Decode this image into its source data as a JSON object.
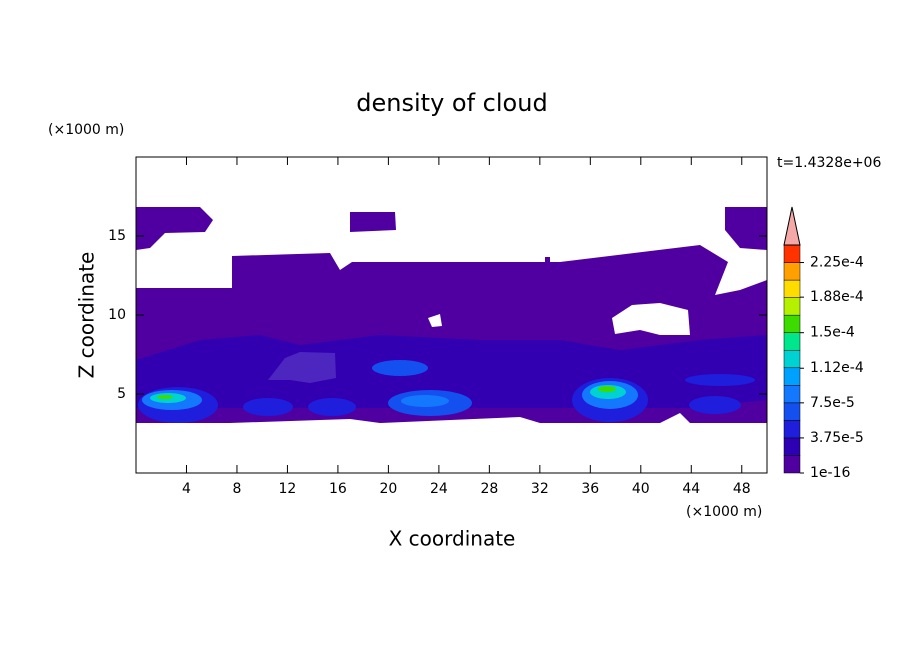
{
  "chart_data": {
    "type": "contour",
    "title": "density of cloud",
    "xlabel": "X coordinate",
    "ylabel": "Z coordinate",
    "xunit": "(×1000 m)",
    "yunit": "(×1000 m)",
    "annotation": "t=1.4328e+06",
    "xlim": [
      0,
      50
    ],
    "ylim": [
      0,
      20
    ],
    "xticks": [
      4,
      8,
      12,
      16,
      20,
      24,
      28,
      32,
      36,
      40,
      44,
      48
    ],
    "yticks": [
      5,
      10,
      15
    ],
    "colorbar": {
      "levels": [
        1e-16,
        1.875e-05,
        3.75e-05,
        5.625e-05,
        7.5e-05,
        9.375e-05,
        0.0001125,
        0.00013125,
        0.00015,
        0.00016875,
        0.0001875,
        0.00020625,
        0.000225,
        0.00024375
      ],
      "colors": [
        "#5000a0",
        "#2d00b4",
        "#1e1edc",
        "#1450f0",
        "#1478ff",
        "#00a0ff",
        "#00d2d2",
        "#00e68c",
        "#3cdc00",
        "#b4f000",
        "#ffdc00",
        "#ffa000",
        "#ff3200"
      ],
      "extend_color": "#f4a8a8",
      "ticks": [
        {
          "value": 1e-16,
          "label": "1e-16"
        },
        {
          "value": 3.75e-05,
          "label": "3.75e-5"
        },
        {
          "value": 7.5e-05,
          "label": "7.5e-5"
        },
        {
          "value": 0.000112,
          "label": "1.12e-4"
        },
        {
          "value": 0.00015,
          "label": "1.5e-4"
        },
        {
          "value": 0.000188,
          "label": "1.88e-4"
        },
        {
          "value": 0.000225,
          "label": "2.25e-4"
        }
      ]
    }
  }
}
